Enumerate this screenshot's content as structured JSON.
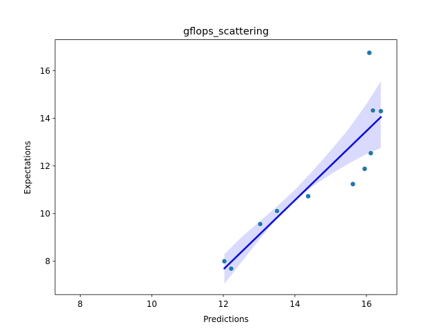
{
  "chart_data": {
    "type": "scatter",
    "title": "gflops_scattering",
    "xlabel": "Predictions",
    "ylabel": "Expectations",
    "xlim": [
      7.3,
      16.85
    ],
    "ylim": [
      6.6,
      17.3
    ],
    "xticks": [
      8,
      10,
      12,
      14,
      16
    ],
    "yticks": [
      8,
      10,
      12,
      14,
      16
    ],
    "grid": false,
    "points": [
      {
        "x": 12.03,
        "y": 8.0
      },
      {
        "x": 12.22,
        "y": 7.69
      },
      {
        "x": 13.03,
        "y": 9.56
      },
      {
        "x": 13.5,
        "y": 10.11
      },
      {
        "x": 14.37,
        "y": 10.73
      },
      {
        "x": 15.62,
        "y": 11.24
      },
      {
        "x": 15.95,
        "y": 11.88
      },
      {
        "x": 16.08,
        "y": 16.75
      },
      {
        "x": 16.12,
        "y": 12.54
      },
      {
        "x": 16.18,
        "y": 14.33
      },
      {
        "x": 16.4,
        "y": 14.3
      }
    ],
    "regression_line": {
      "x": [
        12.03,
        16.4
      ],
      "y": [
        7.7,
        14.05
      ]
    },
    "confidence_band": {
      "x": [
        12.03,
        12.5,
        13.0,
        13.5,
        14.0,
        14.5,
        15.0,
        15.5,
        16.0,
        16.4
      ],
      "lower": [
        7.05,
        7.95,
        8.9,
        9.8,
        10.55,
        11.15,
        11.65,
        12.1,
        12.5,
        12.75
      ],
      "upper": [
        8.3,
        9.0,
        9.65,
        10.3,
        11.0,
        11.8,
        12.65,
        13.55,
        14.6,
        15.55
      ]
    },
    "colors": {
      "points": "#1f77b4",
      "line": "#0000ff",
      "band": "#dadaff"
    }
  }
}
